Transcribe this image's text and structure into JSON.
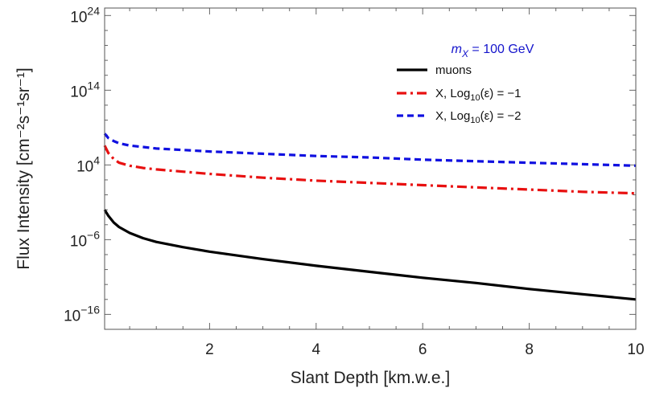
{
  "chart_data": {
    "type": "line",
    "xlabel": "Slant Depth [km.w.e.]",
    "ylabel": "Flux Intensity [cm⁻²s⁻¹sr⁻¹]",
    "xlim": [
      0.03,
      10
    ],
    "ylim_log10": [
      -18,
      25
    ],
    "y_scale": "log",
    "x_ticks": [
      2,
      4,
      6,
      8,
      10
    ],
    "y_tick_labels": [
      {
        "base": "10",
        "exp": "24",
        "log10": 24
      },
      {
        "base": "10",
        "exp": "14",
        "log10": 14
      },
      {
        "base": "10",
        "exp": "4",
        "log10": 4
      },
      {
        "base": "10",
        "exp": "-6",
        "log10": -6
      },
      {
        "base": "10",
        "exp": "-16",
        "log10": -16
      }
    ],
    "legend": {
      "title_var": "m",
      "title_sub": "X",
      "title_rest": " = 100 GeV",
      "title_color": "#1515cc",
      "placement": "top-right"
    },
    "series": [
      {
        "name": "muons",
        "color": "#000000",
        "dash": "solid",
        "legend_text": "muons",
        "x": [
          0.03,
          0.1,
          0.2,
          0.3,
          0.5,
          0.75,
          1.0,
          1.5,
          2,
          3,
          4,
          5,
          6,
          7,
          8,
          9,
          10
        ],
        "log10_y": [
          -2.0,
          -2.8,
          -3.7,
          -4.3,
          -5.1,
          -5.8,
          -6.3,
          -7.0,
          -7.6,
          -8.6,
          -9.5,
          -10.3,
          -11.1,
          -11.8,
          -12.6,
          -13.3,
          -14.0
        ]
      },
      {
        "name": "X, Log10(ε) = -1",
        "color": "#e81010",
        "dash": "dashdot",
        "legend_prefix": "X, Log",
        "legend_sub": "10",
        "legend_suffix": "(ε) = −1",
        "x": [
          0.03,
          0.1,
          0.2,
          0.3,
          0.5,
          0.75,
          1.0,
          1.5,
          2,
          3,
          4,
          5,
          6,
          7,
          8,
          9,
          10
        ],
        "log10_y": [
          6.6,
          5.6,
          4.8,
          4.3,
          3.9,
          3.6,
          3.4,
          3.1,
          2.8,
          2.3,
          1.9,
          1.6,
          1.3,
          1.0,
          0.7,
          0.4,
          0.2
        ]
      },
      {
        "name": "X, Log10(ε) = -2",
        "color": "#1010e0",
        "dash": "dashed",
        "legend_prefix": "X, Log",
        "legend_sub": "10",
        "legend_suffix": "(ε) = −2",
        "x": [
          0.03,
          0.1,
          0.2,
          0.3,
          0.5,
          0.75,
          1.0,
          1.5,
          2,
          3,
          4,
          5,
          6,
          7,
          8,
          9,
          10
        ],
        "log10_y": [
          8.2,
          7.6,
          7.2,
          6.9,
          6.6,
          6.4,
          6.2,
          6.0,
          5.8,
          5.5,
          5.2,
          5.0,
          4.7,
          4.5,
          4.3,
          4.1,
          3.9
        ]
      }
    ]
  }
}
